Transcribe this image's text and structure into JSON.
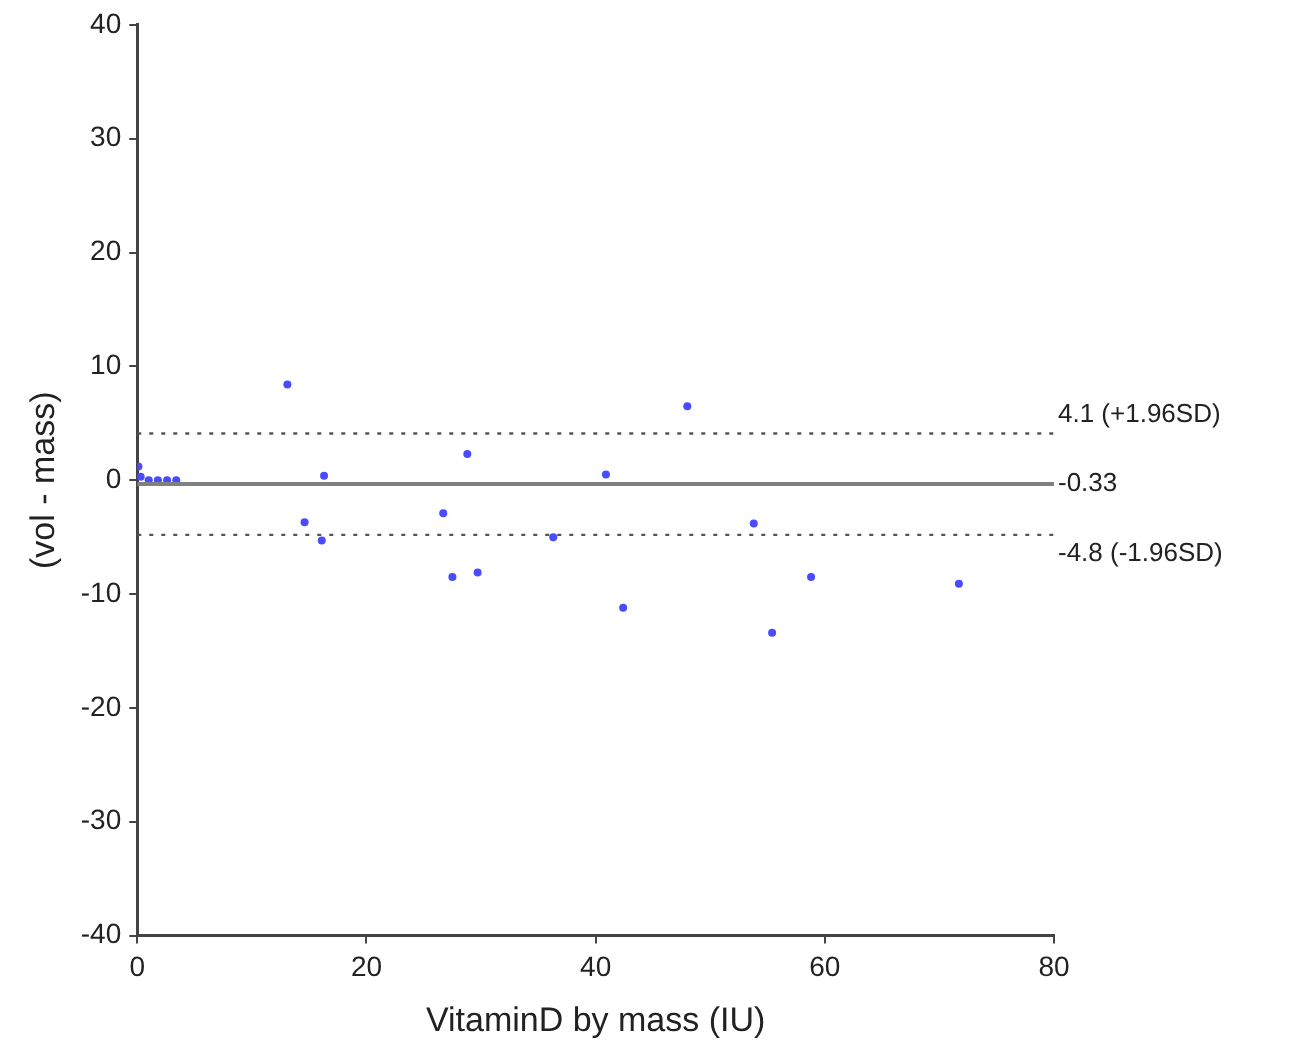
{
  "chart_data": {
    "type": "scatter",
    "xlabel": "VitaminD by mass (IU)",
    "ylabel": "(vol - mass)",
    "x": [
      0.1,
      0.3,
      1.0,
      1.8,
      2.6,
      3.4,
      13.1,
      14.6,
      16.1,
      16.3,
      26.7,
      27.5,
      28.8,
      29.7,
      36.3,
      40.9,
      42.4,
      48.0,
      53.8,
      55.4,
      58.8,
      71.7
    ],
    "series": [
      {
        "color": "#4a4aff",
        "values": [
          1.2,
          0.3,
          0,
          0,
          0,
          0,
          8.4,
          -3.7,
          -5.3,
          0.4,
          -2.9,
          -8.5,
          2.3,
          -8.1,
          -5.0,
          0.5,
          -11.2,
          6.5,
          -3.8,
          -13.4,
          -8.5,
          -9.1
        ]
      }
    ],
    "xlim": [
      0,
      80
    ],
    "xticks": [
      0,
      20,
      40,
      60,
      80
    ],
    "ylim": [
      -40,
      40
    ],
    "yticks": [
      -40,
      -30,
      -20,
      -10,
      0,
      10,
      20,
      30,
      40
    ],
    "marker": "circle",
    "grid": false,
    "legend": false,
    "ref_lines": [
      {
        "axis": "y",
        "value": 4.1,
        "label": "4.1 (+1.96SD)",
        "color": "#555555",
        "line_style": "dotted"
      },
      {
        "axis": "y",
        "value": -0.33,
        "label": "-0.33",
        "color": "#808080",
        "line_style": "solid"
      },
      {
        "axis": "y",
        "value": -4.8,
        "label": "-4.8 (-1.96SD)",
        "color": "#555555",
        "line_style": "dotted"
      }
    ]
  }
}
